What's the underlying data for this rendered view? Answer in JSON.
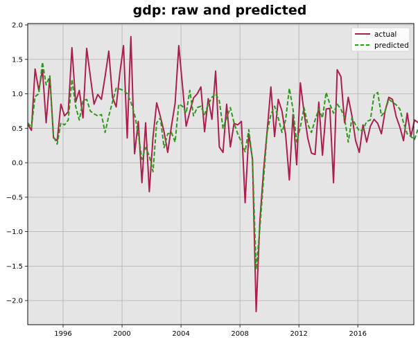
{
  "chart_data": {
    "type": "line",
    "title": "gdp: raw and predicted",
    "xlabel": "",
    "ylabel": "",
    "xlim": [
      1993.6,
      2019.8
    ],
    "ylim": [
      -2.35,
      2.02
    ],
    "grid": true,
    "legend_position": "top-right",
    "x_ticks": [
      1996,
      2000,
      2004,
      2008,
      2012,
      2016
    ],
    "y_ticks": [
      -2.0,
      -1.5,
      -1.0,
      -0.5,
      0.0,
      0.5,
      1.0,
      1.5,
      2.0
    ],
    "x_start": 1993.6,
    "x_step": 0.25,
    "series": [
      {
        "name": "actual",
        "color": "#aa1f4b",
        "dash": "solid",
        "values": [
          0.56,
          0.47,
          1.36,
          1.05,
          1.35,
          0.58,
          1.25,
          0.36,
          0.32,
          0.85,
          0.68,
          0.74,
          1.67,
          0.88,
          1.05,
          0.65,
          1.66,
          1.25,
          0.85,
          0.99,
          0.92,
          1.25,
          1.62,
          0.95,
          0.81,
          1.3,
          1.7,
          0.36,
          1.83,
          0.13,
          0.6,
          -0.29,
          0.58,
          -0.42,
          0.37,
          0.87,
          0.67,
          0.45,
          0.15,
          0.53,
          0.86,
          1.7,
          1.12,
          0.53,
          0.74,
          0.94,
          1.0,
          1.1,
          0.45,
          0.93,
          0.63,
          1.33,
          0.23,
          0.15,
          0.85,
          0.23,
          0.57,
          0.55,
          0.6,
          -0.58,
          0.42,
          0.05,
          -2.16,
          -0.85,
          -0.12,
          0.47,
          1.1,
          0.38,
          0.92,
          0.75,
          0.41,
          -0.25,
          0.7,
          -0.03,
          1.16,
          0.73,
          0.36,
          0.14,
          0.12,
          0.88,
          0.11,
          0.78,
          0.79,
          -0.29,
          1.35,
          1.25,
          0.58,
          0.95,
          0.68,
          0.32,
          0.15,
          0.55,
          0.3,
          0.53,
          0.63,
          0.57,
          0.42,
          0.75,
          0.95,
          0.92,
          0.67,
          0.52,
          0.32,
          0.72,
          0.38,
          0.62,
          0.58
        ]
      },
      {
        "name": "predicted",
        "color": "#2a9a18",
        "dash": "dashed",
        "values": [
          0.58,
          0.51,
          0.96,
          1.0,
          1.46,
          1.13,
          1.26,
          0.38,
          0.27,
          0.58,
          0.55,
          0.62,
          1.21,
          0.82,
          0.62,
          0.9,
          0.92,
          0.75,
          0.71,
          0.68,
          0.7,
          0.44,
          0.68,
          0.88,
          1.08,
          1.07,
          1.05,
          1.0,
          0.88,
          0.7,
          0.42,
          0.05,
          0.22,
          0.1,
          -0.13,
          0.58,
          0.65,
          0.22,
          0.42,
          0.44,
          0.3,
          0.85,
          0.82,
          0.72,
          1.05,
          0.68,
          0.8,
          0.82,
          0.7,
          0.85,
          0.95,
          1.0,
          0.9,
          0.5,
          0.65,
          0.8,
          0.58,
          0.42,
          0.3,
          0.16,
          0.48,
          0.05,
          -1.55,
          -0.95,
          -0.25,
          0.45,
          0.7,
          0.82,
          0.65,
          0.44,
          0.62,
          1.08,
          0.78,
          0.3,
          0.52,
          0.8,
          0.56,
          0.44,
          0.62,
          0.78,
          0.65,
          1.02,
          0.85,
          0.72,
          0.85,
          0.78,
          0.65,
          0.3,
          0.65,
          0.55,
          0.46,
          0.48,
          0.6,
          0.62,
          0.98,
          1.02,
          0.68,
          0.75,
          0.92,
          0.88,
          0.84,
          0.78,
          0.58,
          0.42,
          0.38,
          0.34,
          0.5
        ]
      }
    ]
  }
}
